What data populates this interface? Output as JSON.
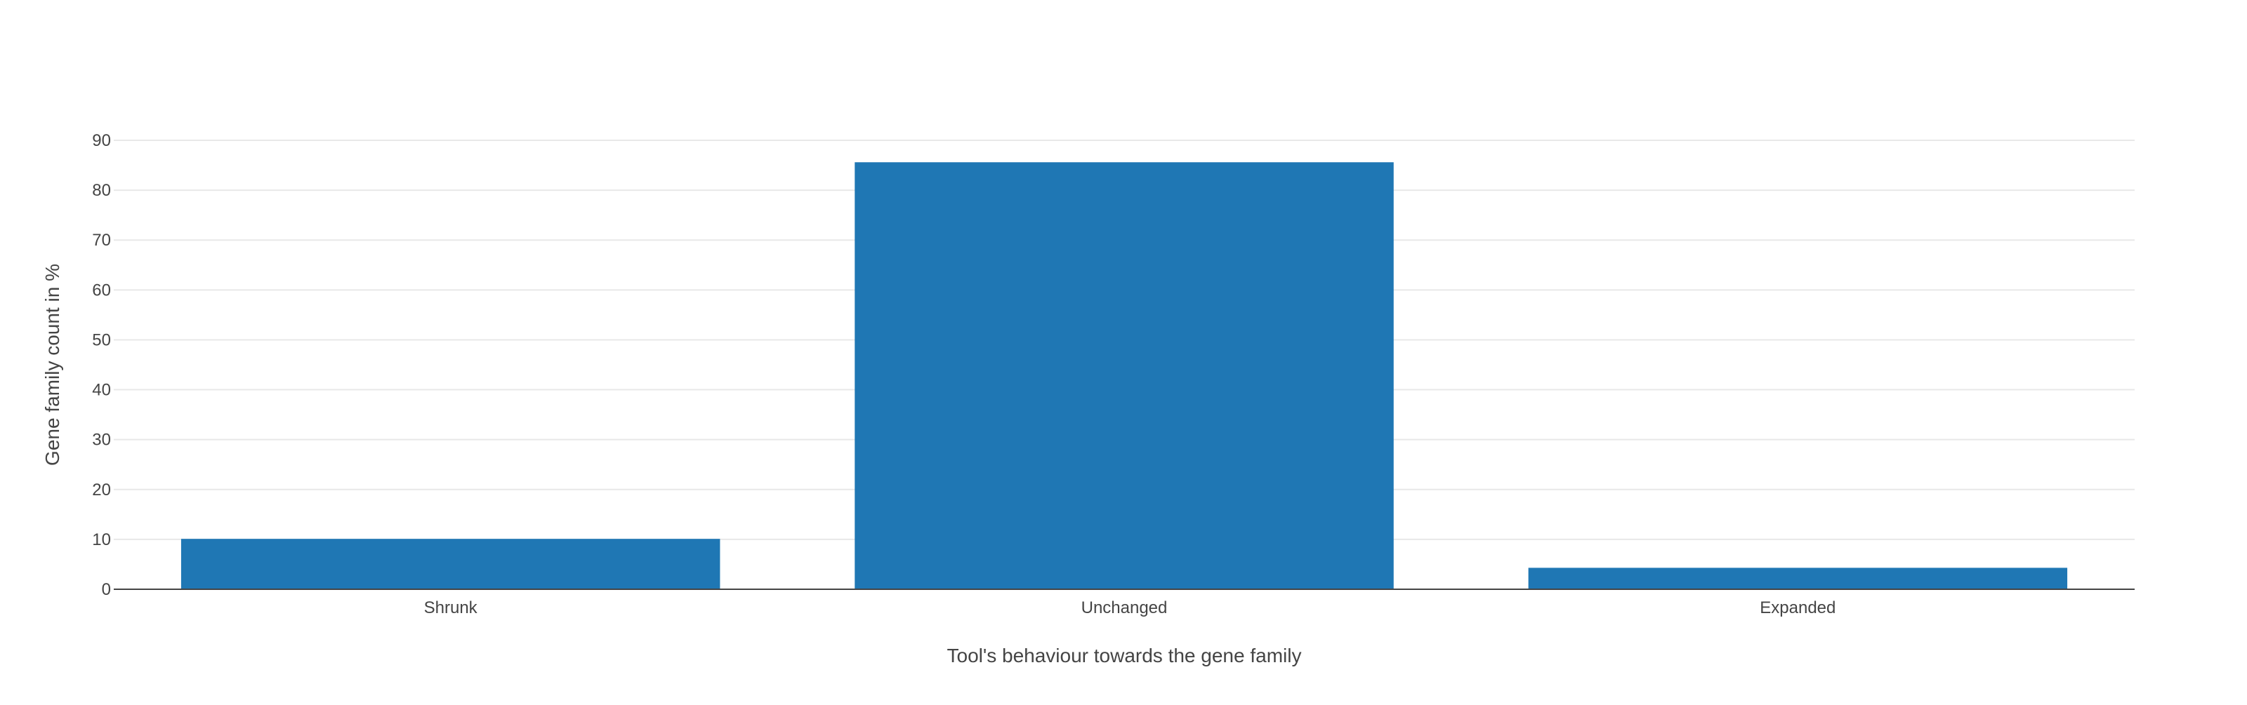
{
  "chart_data": {
    "type": "bar",
    "categories": [
      "Shrunk",
      "Unchanged",
      "Expanded"
    ],
    "values": [
      10.1,
      85.6,
      4.3
    ],
    "title": "",
    "xlabel": "Tool's behaviour towards the gene family",
    "ylabel": "Gene family count in %",
    "ylim": [
      0,
      90
    ],
    "yticks": [
      0,
      10,
      20,
      30,
      40,
      50,
      60,
      70,
      80,
      90
    ],
    "grid": true,
    "bar_color": "#1f77b4"
  }
}
